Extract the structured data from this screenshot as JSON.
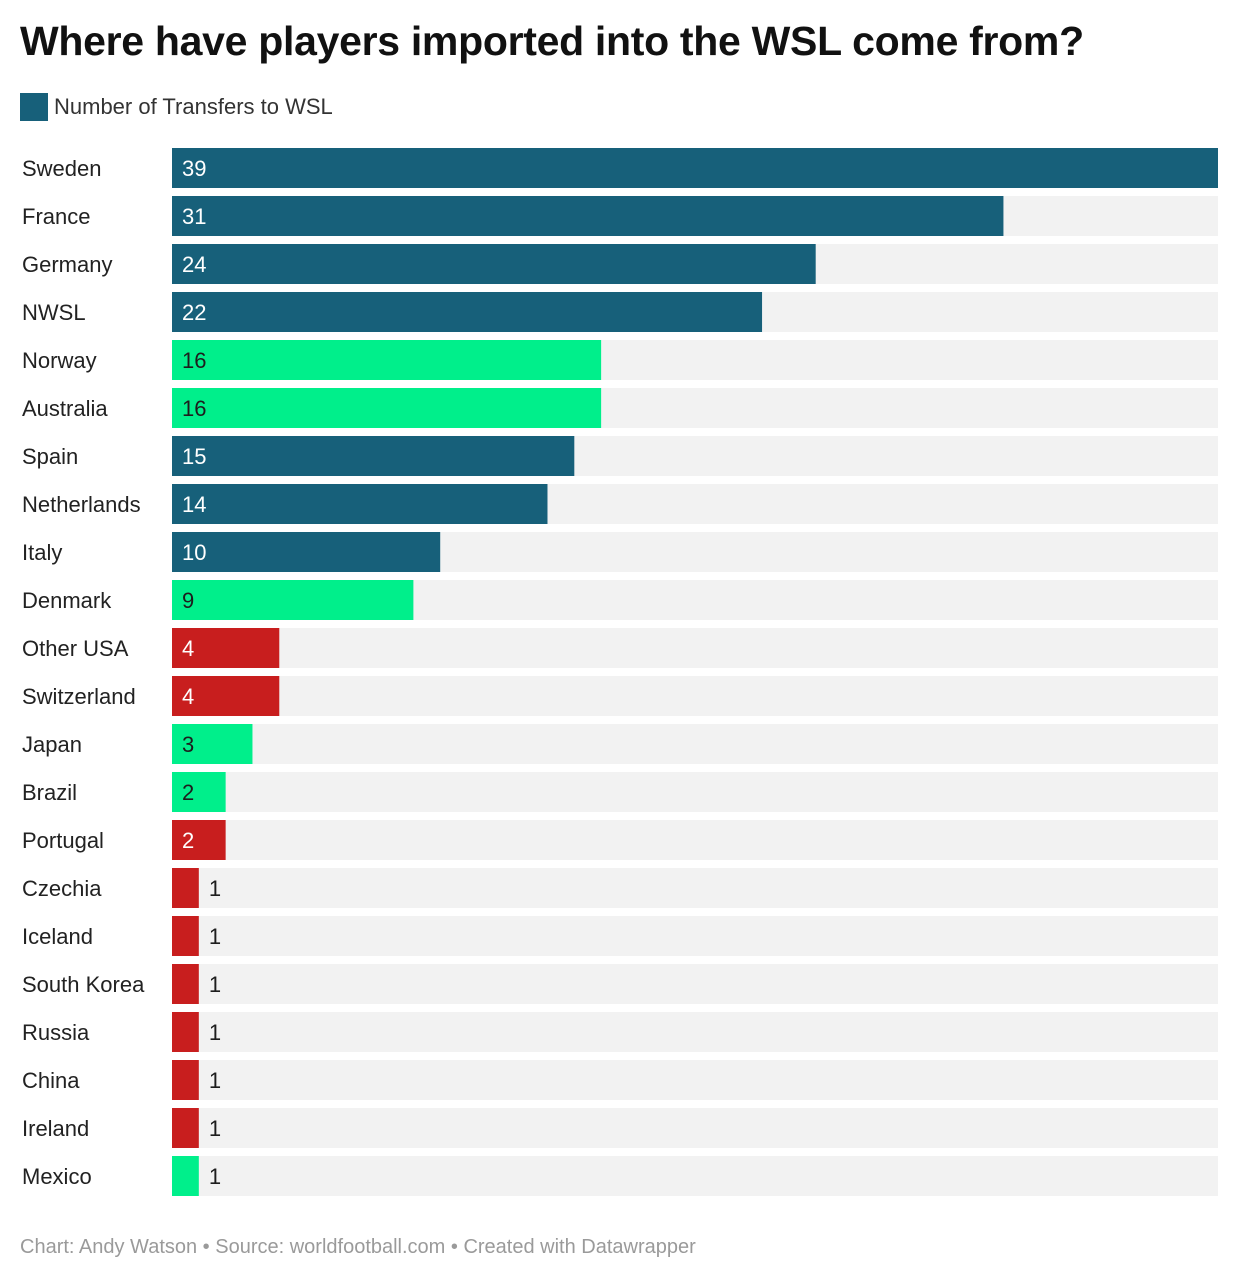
{
  "title": "Where have players imported into the WSL come from?",
  "legend": {
    "label": "Number of Transfers to WSL",
    "color": "#17607a"
  },
  "colors": {
    "blue": "#17607a",
    "green": "#00ef8b",
    "red": "#c81e1e",
    "track": "#f2f2f2"
  },
  "footer": "Chart: Andy Watson • Source: worldfootball.com • Created with Datawrapper",
  "chart_data": {
    "type": "bar",
    "orientation": "horizontal",
    "categories": [
      "Sweden",
      "France",
      "Germany",
      "NWSL",
      "Norway",
      "Australia",
      "Spain",
      "Netherlands",
      "Italy",
      "Denmark",
      "Other USA",
      "Switzerland",
      "Japan",
      "Brazil",
      "Portugal",
      "Czechia",
      "Iceland",
      "South Korea",
      "Russia",
      "China",
      "Ireland",
      "Mexico"
    ],
    "values": [
      39,
      31,
      24,
      22,
      16,
      16,
      15,
      14,
      10,
      9,
      4,
      4,
      3,
      2,
      2,
      1,
      1,
      1,
      1,
      1,
      1,
      1
    ],
    "bar_colors": [
      "blue",
      "blue",
      "blue",
      "blue",
      "green",
      "green",
      "blue",
      "blue",
      "blue",
      "green",
      "red",
      "red",
      "green",
      "green",
      "red",
      "red",
      "red",
      "red",
      "red",
      "red",
      "red",
      "green"
    ],
    "xlim": [
      0,
      39
    ],
    "series": [
      {
        "name": "Number of Transfers to WSL",
        "values": [
          39,
          31,
          24,
          22,
          16,
          16,
          15,
          14,
          10,
          9,
          4,
          4,
          3,
          2,
          2,
          1,
          1,
          1,
          1,
          1,
          1,
          1
        ]
      }
    ]
  }
}
